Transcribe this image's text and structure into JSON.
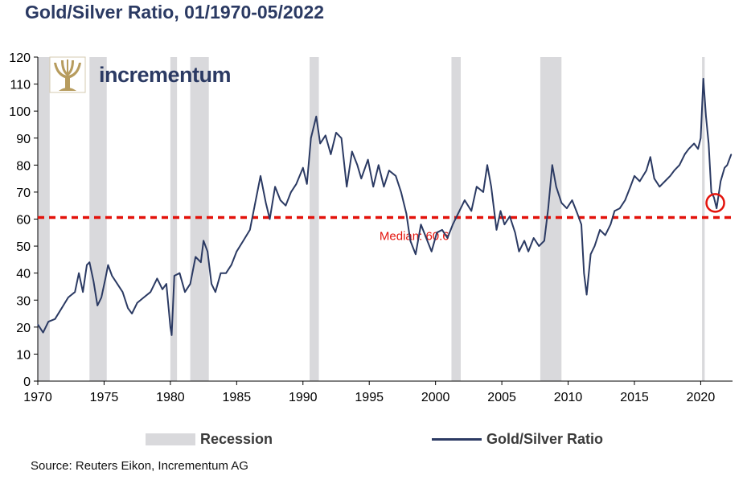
{
  "title": "Gold/Silver Ratio, 01/1970-05/2022",
  "logo_text": "incrementum",
  "source": "Source: Reuters Eikon, Incrementum AG",
  "legend": {
    "recession": "Recession",
    "ratio": "Gold/Silver Ratio"
  },
  "colors": {
    "line": "#2b3a63",
    "recession": "#d9d9dc",
    "median": "#e3120b",
    "logo": "#b79c5e"
  },
  "chart_data": {
    "type": "line",
    "xlim": [
      1970,
      2022.4
    ],
    "ylim": [
      0,
      120
    ],
    "x_ticks": [
      1970,
      1975,
      1980,
      1985,
      1990,
      1995,
      2000,
      2005,
      2010,
      2015,
      2020
    ],
    "y_ticks": [
      0,
      10,
      20,
      30,
      40,
      50,
      60,
      70,
      80,
      90,
      100,
      110,
      120
    ],
    "grid": false,
    "legend_position": "bottom",
    "recessions": [
      [
        1970.0,
        1970.9
      ],
      [
        1973.9,
        1975.2
      ],
      [
        1980.0,
        1980.5
      ],
      [
        1981.5,
        1982.9
      ],
      [
        1990.5,
        1991.2
      ],
      [
        2001.2,
        2001.9
      ],
      [
        2007.9,
        2009.5
      ],
      [
        2020.1,
        2020.3
      ]
    ],
    "median": {
      "value": 60.6,
      "label": "Median: 60.6"
    },
    "highlight": {
      "x": 2021.1,
      "y": 66
    },
    "series": [
      {
        "name": "Gold/Silver Ratio",
        "points": [
          [
            1970.0,
            21
          ],
          [
            1970.4,
            18
          ],
          [
            1970.8,
            22
          ],
          [
            1971.3,
            23
          ],
          [
            1971.8,
            27
          ],
          [
            1972.3,
            31
          ],
          [
            1972.8,
            33
          ],
          [
            1973.1,
            40
          ],
          [
            1973.4,
            33
          ],
          [
            1973.7,
            43
          ],
          [
            1973.9,
            44
          ],
          [
            1974.2,
            37
          ],
          [
            1974.5,
            28
          ],
          [
            1974.8,
            31
          ],
          [
            1975.1,
            38
          ],
          [
            1975.3,
            43
          ],
          [
            1975.6,
            39
          ],
          [
            1976.0,
            36
          ],
          [
            1976.4,
            33
          ],
          [
            1976.8,
            27
          ],
          [
            1977.1,
            25
          ],
          [
            1977.5,
            29
          ],
          [
            1978.0,
            31
          ],
          [
            1978.5,
            33
          ],
          [
            1979.0,
            38
          ],
          [
            1979.4,
            34
          ],
          [
            1979.7,
            36
          ],
          [
            1980.0,
            20
          ],
          [
            1980.1,
            17
          ],
          [
            1980.3,
            39
          ],
          [
            1980.7,
            40
          ],
          [
            1981.1,
            33
          ],
          [
            1981.5,
            36
          ],
          [
            1981.9,
            46
          ],
          [
            1982.3,
            44
          ],
          [
            1982.5,
            52
          ],
          [
            1982.8,
            48
          ],
          [
            1983.1,
            36
          ],
          [
            1983.4,
            33
          ],
          [
            1983.8,
            40
          ],
          [
            1984.2,
            40
          ],
          [
            1984.6,
            43
          ],
          [
            1985.0,
            48
          ],
          [
            1985.5,
            52
          ],
          [
            1986.0,
            56
          ],
          [
            1986.4,
            66
          ],
          [
            1986.8,
            76
          ],
          [
            1987.2,
            66
          ],
          [
            1987.5,
            60
          ],
          [
            1987.9,
            72
          ],
          [
            1988.3,
            67
          ],
          [
            1988.7,
            65
          ],
          [
            1989.1,
            70
          ],
          [
            1989.5,
            73
          ],
          [
            1990.0,
            79
          ],
          [
            1990.3,
            73
          ],
          [
            1990.6,
            90
          ],
          [
            1991.0,
            98
          ],
          [
            1991.3,
            88
          ],
          [
            1991.7,
            91
          ],
          [
            1992.1,
            84
          ],
          [
            1992.5,
            92
          ],
          [
            1992.9,
            90
          ],
          [
            1993.3,
            72
          ],
          [
            1993.7,
            85
          ],
          [
            1994.1,
            80
          ],
          [
            1994.4,
            75
          ],
          [
            1994.9,
            82
          ],
          [
            1995.3,
            72
          ],
          [
            1995.7,
            80
          ],
          [
            1996.1,
            72
          ],
          [
            1996.5,
            78
          ],
          [
            1997.0,
            76
          ],
          [
            1997.4,
            70
          ],
          [
            1997.8,
            62
          ],
          [
            1998.1,
            52
          ],
          [
            1998.5,
            47
          ],
          [
            1998.9,
            58
          ],
          [
            1999.3,
            53
          ],
          [
            1999.7,
            48
          ],
          [
            2000.1,
            55
          ],
          [
            2000.5,
            56
          ],
          [
            2000.9,
            53
          ],
          [
            2001.3,
            58
          ],
          [
            2001.8,
            63
          ],
          [
            2002.2,
            67
          ],
          [
            2002.7,
            63
          ],
          [
            2003.1,
            72
          ],
          [
            2003.6,
            70
          ],
          [
            2003.9,
            80
          ],
          [
            2004.2,
            72
          ],
          [
            2004.6,
            56
          ],
          [
            2004.9,
            63
          ],
          [
            2005.2,
            58
          ],
          [
            2005.6,
            61
          ],
          [
            2006.0,
            55
          ],
          [
            2006.3,
            48
          ],
          [
            2006.7,
            52
          ],
          [
            2007.0,
            48
          ],
          [
            2007.4,
            53
          ],
          [
            2007.8,
            50
          ],
          [
            2008.2,
            52
          ],
          [
            2008.5,
            64
          ],
          [
            2008.8,
            80
          ],
          [
            2009.1,
            72
          ],
          [
            2009.5,
            66
          ],
          [
            2009.9,
            64
          ],
          [
            2010.3,
            67
          ],
          [
            2010.7,
            62
          ],
          [
            2011.0,
            58
          ],
          [
            2011.2,
            40
          ],
          [
            2011.4,
            32
          ],
          [
            2011.7,
            47
          ],
          [
            2012.0,
            50
          ],
          [
            2012.4,
            56
          ],
          [
            2012.8,
            54
          ],
          [
            2013.2,
            58
          ],
          [
            2013.5,
            63
          ],
          [
            2013.9,
            64
          ],
          [
            2014.3,
            67
          ],
          [
            2014.7,
            72
          ],
          [
            2015.0,
            76
          ],
          [
            2015.4,
            74
          ],
          [
            2015.9,
            78
          ],
          [
            2016.2,
            83
          ],
          [
            2016.5,
            75
          ],
          [
            2016.9,
            72
          ],
          [
            2017.3,
            74
          ],
          [
            2017.7,
            76
          ],
          [
            2018.0,
            78
          ],
          [
            2018.4,
            80
          ],
          [
            2018.8,
            84
          ],
          [
            2019.1,
            86
          ],
          [
            2019.5,
            88
          ],
          [
            2019.8,
            86
          ],
          [
            2020.0,
            90
          ],
          [
            2020.2,
            112
          ],
          [
            2020.4,
            98
          ],
          [
            2020.6,
            88
          ],
          [
            2020.8,
            70
          ],
          [
            2021.0,
            68
          ],
          [
            2021.2,
            64
          ],
          [
            2021.5,
            74
          ],
          [
            2021.8,
            79
          ],
          [
            2022.0,
            80
          ],
          [
            2022.3,
            84
          ]
        ]
      }
    ]
  }
}
